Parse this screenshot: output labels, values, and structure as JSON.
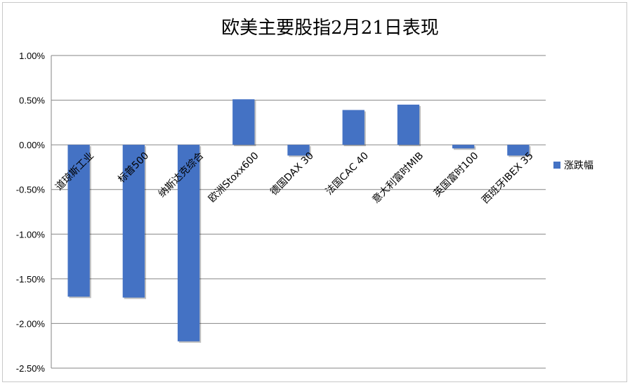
{
  "chart_data": {
    "type": "bar",
    "title": "欧美主要股指2月21日表现",
    "categories": [
      "道琼斯工业",
      "标普500",
      "纳斯达克综合",
      "欧洲Stoxx600",
      "德国DAX 30",
      "法国CAC 40",
      "意大利富时MIB",
      "英国富时100",
      "西班牙IBEX 35"
    ],
    "series": [
      {
        "name": "涨跌幅",
        "values": [
          -1.7,
          -1.71,
          -2.2,
          0.51,
          -0.12,
          0.39,
          0.45,
          -0.04,
          -0.12
        ],
        "color": "#4472C4"
      }
    ],
    "ylim": [
      -2.5,
      1.0
    ],
    "yticks": [
      1.0,
      0.5,
      0.0,
      -0.5,
      -1.0,
      -1.5,
      -2.0,
      -2.5
    ],
    "ytick_labels": [
      "1.00%",
      "0.50%",
      "0.00%",
      "-0.50%",
      "-1.00%",
      "-1.50%",
      "-2.00%",
      "-2.50%"
    ],
    "grid": true,
    "legend": "right"
  }
}
